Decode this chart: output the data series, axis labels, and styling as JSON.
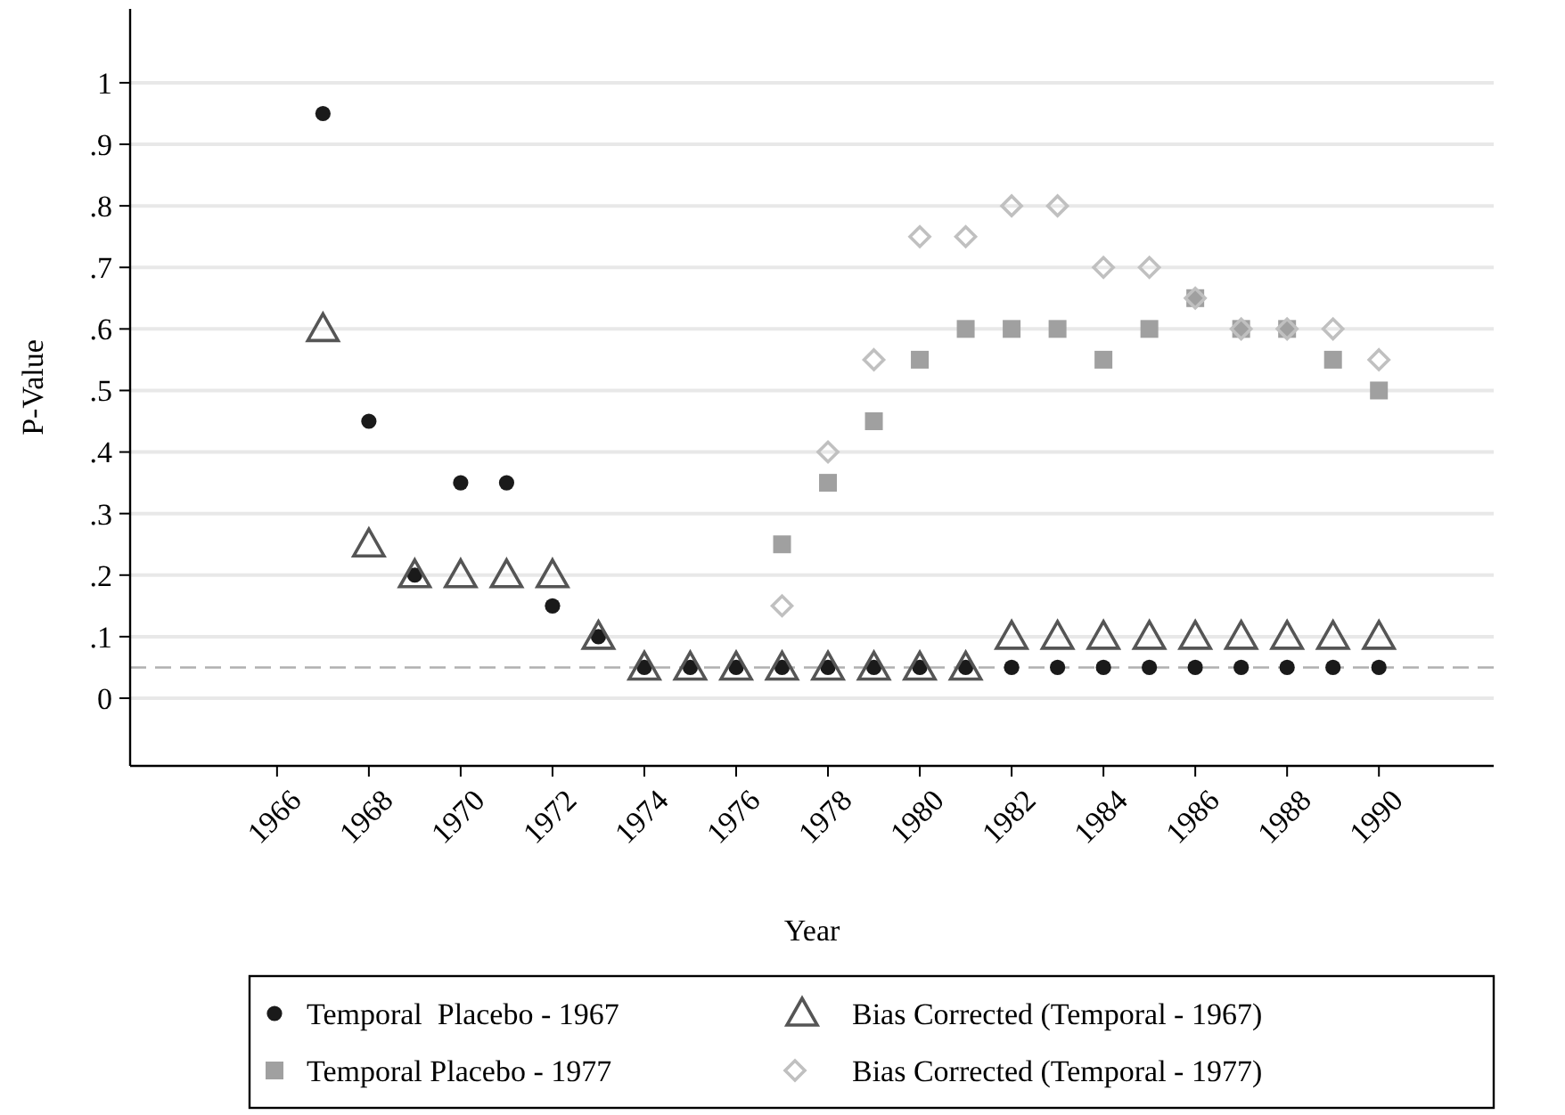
{
  "chart_data": {
    "type": "scatter",
    "xlabel": "Year",
    "ylabel": "P-Value",
    "xlim": [
      1962.8,
      1992.5
    ],
    "xticks": [
      1966,
      1968,
      1970,
      1972,
      1974,
      1976,
      1978,
      1980,
      1982,
      1984,
      1986,
      1988,
      1990
    ],
    "ylim": [
      -0.11,
      1.12
    ],
    "yticks": [
      {
        "value": 0,
        "label": "0"
      },
      {
        "value": 0.1,
        "label": ".1"
      },
      {
        "value": 0.2,
        "label": ".2"
      },
      {
        "value": 0.3,
        "label": ".3"
      },
      {
        "value": 0.4,
        "label": ".4"
      },
      {
        "value": 0.5,
        "label": ".5"
      },
      {
        "value": 0.6,
        "label": ".6"
      },
      {
        "value": 0.7,
        "label": ".7"
      },
      {
        "value": 0.8,
        "label": ".8"
      },
      {
        "value": 0.9,
        "label": ".9"
      },
      {
        "value": 1,
        "label": "1"
      }
    ],
    "grid": "y",
    "legend": "bottom",
    "ref_lines": [
      {
        "axis": "y",
        "value": 0.05,
        "color": "#b0b0b0",
        "line_style": "dashed"
      }
    ],
    "series": [
      {
        "name": "Temporal  Placebo - 1967",
        "color": "#1a1a1a",
        "marker": "circle",
        "x": [
          1967,
          1968,
          1969,
          1970,
          1971,
          1972,
          1973,
          1974,
          1975,
          1976,
          1977,
          1978,
          1979,
          1980,
          1981,
          1982,
          1983,
          1984,
          1985,
          1986,
          1987,
          1988,
          1989,
          1990
        ],
        "values": [
          0.95,
          0.45,
          0.2,
          0.35,
          0.35,
          0.15,
          0.1,
          0.05,
          0.05,
          0.05,
          0.05,
          0.05,
          0.05,
          0.05,
          0.05,
          0.05,
          0.05,
          0.05,
          0.05,
          0.05,
          0.05,
          0.05,
          0.05,
          0.05
        ]
      },
      {
        "name": "Temporal Placebo - 1977",
        "color": "#a0a0a0",
        "marker": "square",
        "x": [
          1977,
          1978,
          1979,
          1980,
          1981,
          1982,
          1983,
          1984,
          1985,
          1986,
          1987,
          1988,
          1989,
          1990
        ],
        "values": [
          0.25,
          0.35,
          0.45,
          0.55,
          0.6,
          0.6,
          0.6,
          0.55,
          0.6,
          0.65,
          0.6,
          0.6,
          0.55,
          0.5
        ]
      },
      {
        "name": "Bias Corrected (Temporal - 1967)",
        "color": "#555555",
        "marker": "triangle",
        "x": [
          1967,
          1968,
          1969,
          1970,
          1971,
          1972,
          1973,
          1974,
          1975,
          1976,
          1977,
          1978,
          1979,
          1980,
          1981,
          1982,
          1983,
          1984,
          1985,
          1986,
          1987,
          1988,
          1989,
          1990
        ],
        "values": [
          0.6,
          0.25,
          0.2,
          0.2,
          0.2,
          0.2,
          0.1,
          0.05,
          0.05,
          0.05,
          0.05,
          0.05,
          0.05,
          0.05,
          0.05,
          0.1,
          0.1,
          0.1,
          0.1,
          0.1,
          0.1,
          0.1,
          0.1,
          0.1
        ]
      },
      {
        "name": "Bias Corrected (Temporal - 1977)",
        "color": "#c0c0c0",
        "marker": "diamond",
        "x": [
          1977,
          1978,
          1979,
          1980,
          1981,
          1982,
          1983,
          1984,
          1985,
          1986,
          1987,
          1988,
          1989,
          1990
        ],
        "values": [
          0.15,
          0.4,
          0.55,
          0.75,
          0.75,
          0.8,
          0.8,
          0.7,
          0.7,
          0.65,
          0.6,
          0.6,
          0.6,
          0.55
        ]
      }
    ]
  }
}
